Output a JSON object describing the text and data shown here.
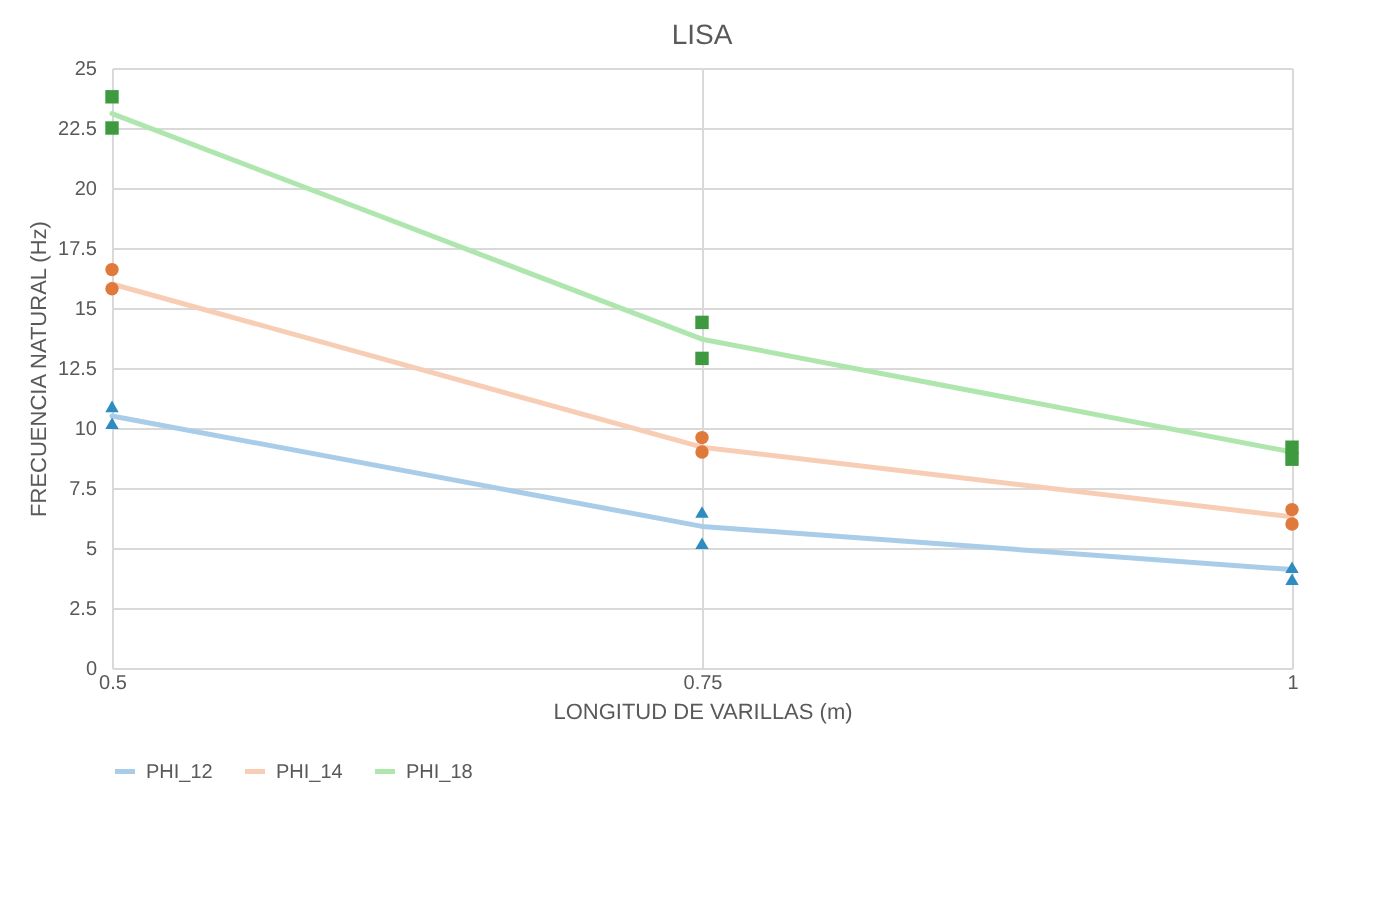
{
  "chart_data": {
    "type": "line",
    "title": "LISA",
    "xlabel": "LONGITUD DE VARILLAS (m)",
    "ylabel": "FRECUENCIA NATURAL (Hz)",
    "x": [
      0.5,
      0.75,
      1
    ],
    "xlim": [
      0.5,
      1
    ],
    "xticks": [
      0.5,
      0.75,
      1
    ],
    "ylim": [
      0,
      25
    ],
    "yticks": [
      0,
      2.5,
      5,
      7.5,
      10,
      12.5,
      15,
      17.5,
      20,
      22.5,
      25
    ],
    "grid": true,
    "legend": "bottom",
    "series": [
      {
        "name": "PHI_12",
        "color": "#a9cde8",
        "values": [
          10.5,
          5.9,
          4.1
        ]
      },
      {
        "name": "PHI_14",
        "color": "#f8cdb5",
        "values": [
          16.0,
          9.2,
          6.3
        ]
      },
      {
        "name": "PHI_18",
        "color": "#aee6ae",
        "values": [
          23.1,
          13.7,
          9.0
        ]
      },
      {
        "type": "scatter",
        "marker": "triangle",
        "color": "#2e8cc0",
        "x": [
          0.5,
          0.5,
          0.75,
          0.75,
          1,
          1
        ],
        "values": [
          10.9,
          10.2,
          6.5,
          5.2,
          4.2,
          3.7
        ]
      },
      {
        "type": "scatter",
        "marker": "circle",
        "color": "#e07a3c",
        "x": [
          0.5,
          0.5,
          0.75,
          0.75,
          1,
          1
        ],
        "values": [
          16.6,
          15.8,
          9.6,
          9.0,
          6.6,
          6.0
        ]
      },
      {
        "type": "scatter",
        "marker": "square",
        "color": "#3f9a3f",
        "x": [
          0.5,
          0.5,
          0.75,
          0.75,
          1,
          1
        ],
        "values": [
          23.8,
          22.5,
          14.4,
          12.9,
          9.2,
          8.7
        ]
      }
    ]
  }
}
